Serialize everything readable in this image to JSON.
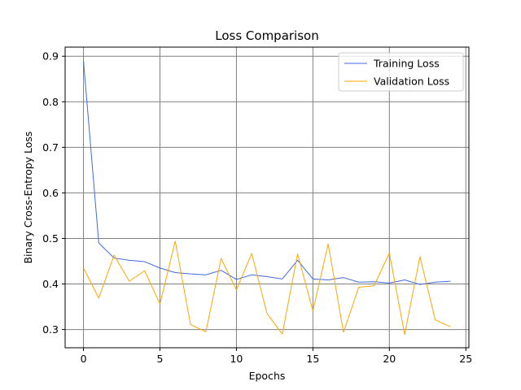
{
  "chart_data": {
    "type": "line",
    "title": "Loss Comparison",
    "xlabel": "Epochs",
    "ylabel": "Binary Cross-Entropy Loss",
    "xlim": [
      -1.2,
      25.2
    ],
    "ylim": [
      0.26,
      0.92
    ],
    "xticks": [
      0,
      5,
      10,
      15,
      20,
      25
    ],
    "yticks": [
      0.3,
      0.4,
      0.5,
      0.6,
      0.7,
      0.8,
      0.9
    ],
    "grid": true,
    "legend_position": "upper right",
    "x": [
      0,
      1,
      2,
      3,
      4,
      5,
      6,
      7,
      8,
      9,
      10,
      11,
      12,
      13,
      14,
      15,
      16,
      17,
      18,
      19,
      20,
      21,
      22,
      23,
      24
    ],
    "series": [
      {
        "name": "Training Loss",
        "color": "#4169e1",
        "values": [
          0.89,
          0.49,
          0.457,
          0.452,
          0.449,
          0.435,
          0.425,
          0.422,
          0.42,
          0.43,
          0.41,
          0.42,
          0.416,
          0.411,
          0.452,
          0.411,
          0.409,
          0.414,
          0.404,
          0.405,
          0.402,
          0.409,
          0.399,
          0.404,
          0.406
        ]
      },
      {
        "name": "Validation Loss",
        "color": "#ffa500",
        "values": [
          0.435,
          0.369,
          0.463,
          0.406,
          0.429,
          0.356,
          0.494,
          0.311,
          0.295,
          0.456,
          0.387,
          0.467,
          0.335,
          0.29,
          0.466,
          0.341,
          0.488,
          0.294,
          0.393,
          0.396,
          0.468,
          0.289,
          0.46,
          0.321,
          0.306
        ]
      }
    ]
  }
}
